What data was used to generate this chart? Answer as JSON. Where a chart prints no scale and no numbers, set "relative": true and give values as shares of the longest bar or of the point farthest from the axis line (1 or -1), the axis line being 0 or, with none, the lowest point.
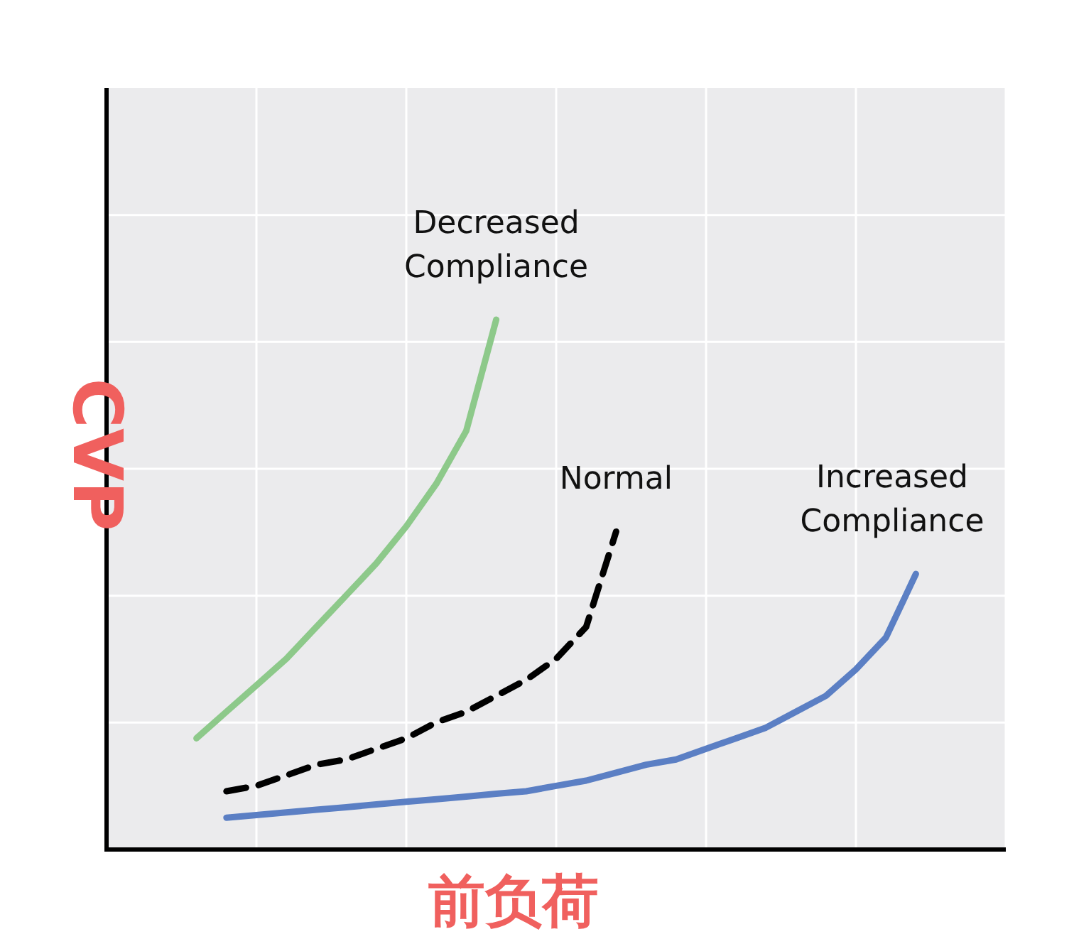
{
  "chart_data": {
    "type": "line",
    "relative": true,
    "grid": true,
    "xlabel": "前负荷",
    "ylabel": "CVP",
    "categories": [
      null,
      null,
      null,
      null,
      null,
      null,
      null,
      null,
      null,
      null,
      null,
      null,
      null,
      null,
      null,
      null,
      null,
      null,
      null,
      null,
      null,
      null,
      null,
      null,
      null,
      null,
      null,
      null,
      null,
      null,
      null
    ],
    "series": [
      {
        "name": "Decreased Compliance",
        "color": "#8dc98a",
        "line_style": "solid",
        "values": [
          null,
          null,
          null,
          0.21,
          0.26,
          0.31,
          0.36,
          0.42,
          0.48,
          0.54,
          0.61,
          0.69,
          0.79,
          1.0,
          null,
          null,
          null,
          null,
          null,
          null,
          null,
          null,
          null,
          null,
          null,
          null,
          null,
          null,
          null,
          null,
          null
        ]
      },
      {
        "name": "Normal",
        "color": "#000000",
        "line_style": "dashed",
        "values": [
          null,
          null,
          null,
          null,
          0.11,
          0.12,
          0.14,
          0.16,
          0.17,
          0.19,
          0.21,
          0.24,
          0.26,
          0.29,
          0.32,
          0.36,
          0.42,
          0.6,
          null,
          null,
          null,
          null,
          null,
          null,
          null,
          null,
          null,
          null,
          null,
          null,
          null
        ]
      },
      {
        "name": "Increased Compliance",
        "color": "#5b7fc4",
        "line_style": "solid",
        "values": [
          null,
          null,
          null,
          null,
          0.06,
          0.065,
          0.07,
          0.075,
          0.08,
          0.085,
          0.09,
          0.095,
          0.1,
          0.105,
          0.11,
          0.12,
          0.13,
          0.145,
          0.16,
          0.17,
          0.19,
          0.21,
          0.23,
          0.26,
          0.29,
          0.34,
          0.4,
          0.52,
          null,
          null,
          null
        ]
      }
    ]
  }
}
